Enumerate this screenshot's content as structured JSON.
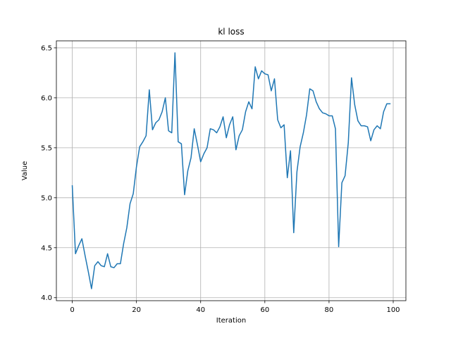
{
  "chart_data": {
    "type": "line",
    "title": "kl loss",
    "xlabel": "Iteration",
    "ylabel": "Value",
    "xlim": [
      -4.95,
      103.95
    ],
    "ylim": [
      3.97,
      6.57
    ],
    "xticks": [
      0,
      20,
      40,
      60,
      80,
      100
    ],
    "yticks": [
      4.0,
      4.5,
      5.0,
      5.5,
      6.0,
      6.5
    ],
    "xtick_labels": [
      "0",
      "20",
      "40",
      "60",
      "80",
      "100"
    ],
    "ytick_labels": [
      "4.0",
      "4.5",
      "5.0",
      "5.5",
      "6.0",
      "6.5"
    ],
    "grid": true,
    "series": [
      {
        "name": "kl loss",
        "color": "#1f77b4",
        "x": [
          0,
          1,
          2,
          3,
          4,
          5,
          6,
          7,
          8,
          9,
          10,
          11,
          12,
          13,
          14,
          15,
          16,
          17,
          18,
          19,
          20,
          21,
          22,
          23,
          24,
          25,
          26,
          27,
          28,
          29,
          30,
          31,
          32,
          33,
          34,
          35,
          36,
          37,
          38,
          39,
          40,
          41,
          42,
          43,
          44,
          45,
          46,
          47,
          48,
          49,
          50,
          51,
          52,
          53,
          54,
          55,
          56,
          57,
          58,
          59,
          60,
          61,
          62,
          63,
          64,
          65,
          66,
          67,
          68,
          69,
          70,
          71,
          72,
          73,
          74,
          75,
          76,
          77,
          78,
          79,
          80,
          81,
          82,
          83,
          84,
          85,
          86,
          87,
          88,
          89,
          90,
          91,
          92,
          93,
          94,
          95,
          96,
          97,
          98,
          99
        ],
        "values": [
          5.12,
          4.44,
          4.52,
          4.59,
          4.42,
          4.26,
          4.09,
          4.32,
          4.36,
          4.32,
          4.31,
          4.44,
          4.31,
          4.3,
          4.34,
          4.34,
          4.54,
          4.7,
          4.94,
          5.04,
          5.31,
          5.51,
          5.56,
          5.62,
          6.08,
          5.68,
          5.75,
          5.78,
          5.86,
          6.0,
          5.67,
          5.65,
          6.45,
          5.56,
          5.54,
          5.03,
          5.27,
          5.4,
          5.69,
          5.53,
          5.36,
          5.44,
          5.5,
          5.69,
          5.68,
          5.65,
          5.71,
          5.81,
          5.6,
          5.73,
          5.81,
          5.48,
          5.62,
          5.68,
          5.86,
          5.96,
          5.89,
          6.31,
          6.19,
          6.27,
          6.24,
          6.23,
          6.07,
          6.19,
          5.78,
          5.7,
          5.73,
          5.2,
          5.47,
          4.65,
          5.26,
          5.51,
          5.65,
          5.83,
          6.09,
          6.07,
          5.96,
          5.89,
          5.85,
          5.84,
          5.82,
          5.82,
          5.69,
          4.51,
          5.15,
          5.22,
          5.55,
          6.2,
          5.93,
          5.77,
          5.72,
          5.72,
          5.71,
          5.57,
          5.68,
          5.72,
          5.69,
          5.86,
          5.94,
          5.94
        ]
      }
    ]
  }
}
